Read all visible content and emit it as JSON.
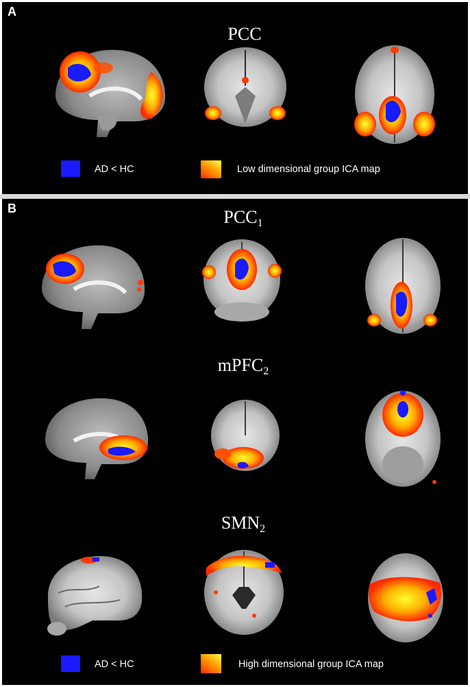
{
  "panel_a": {
    "letter": "A",
    "title": "PCC",
    "legend": {
      "blue_label": "AD < HC",
      "map_label": "Low dimensional group ICA map"
    }
  },
  "panel_b": {
    "letter": "B",
    "rows": [
      {
        "base": "PCC",
        "sub": "1"
      },
      {
        "base": "mPFC",
        "sub": "2"
      },
      {
        "base": "SMN",
        "sub": "2"
      }
    ],
    "legend": {
      "blue_label": "AD < HC",
      "map_label": "High dimensional group ICA map"
    }
  },
  "colors": {
    "background": "#000000",
    "divider": "#d9d9d9",
    "ad_lt_hc": "#1a1aff",
    "ica_low": "#ff3300",
    "ica_high": "#ffee00"
  }
}
